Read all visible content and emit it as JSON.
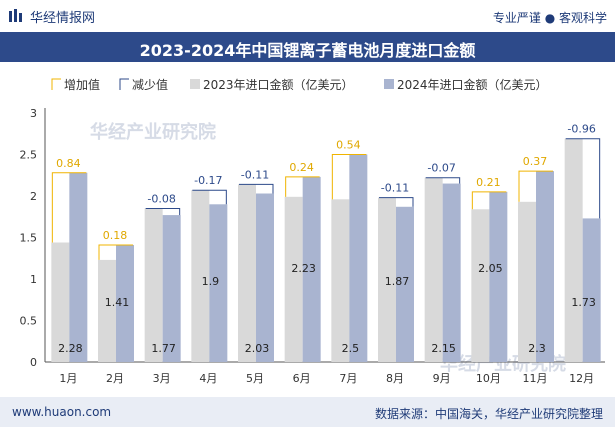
{
  "header": {
    "brand": "华经情报网",
    "slogan": "专业严谨 ● 客观科学"
  },
  "footer": {
    "url": "www.huaon.com",
    "source": "数据来源：中国海关，华经产业研究院整理"
  },
  "watermarks": [
    "华经产业研究院",
    "www.huaon.com"
  ],
  "colors": {
    "s2023": "#d9d9d9",
    "s2024": "#a9b4d0",
    "increase": "#f0b400",
    "decrease": "#2d4a8a",
    "title_bg": "#2d4a8a"
  },
  "chart_data": {
    "type": "bar",
    "title": "2023-2024年中国锂离子蓄电池月度进口金额",
    "categories": [
      "1月",
      "2月",
      "3月",
      "4月",
      "5月",
      "6月",
      "7月",
      "8月",
      "9月",
      "10月",
      "11月",
      "12月"
    ],
    "series": [
      {
        "name": "2023年进口金额（亿美元）",
        "values": [
          1.44,
          1.23,
          1.85,
          2.07,
          2.14,
          1.99,
          1.96,
          1.98,
          2.22,
          1.84,
          1.93,
          2.69
        ]
      },
      {
        "name": "2024年进口金额（亿美元）",
        "values": [
          2.28,
          1.41,
          1.77,
          1.9,
          2.03,
          2.23,
          2.5,
          1.87,
          2.15,
          2.05,
          2.3,
          1.73
        ]
      }
    ],
    "changes": [
      0.84,
      0.18,
      -0.08,
      -0.17,
      -0.11,
      0.24,
      0.54,
      -0.11,
      -0.07,
      0.21,
      0.37,
      -0.96
    ],
    "change_labels": [
      "0.84",
      "0.18",
      "-0.08",
      "-0.17",
      "-0.11",
      "0.24",
      "0.54",
      "-0.11",
      "-0.07",
      "0.21",
      "0.37",
      "-0.96"
    ],
    "value_labels_2024": [
      "2.28",
      "1.41",
      "1.77",
      "1.9",
      "2.03",
      "2.23",
      "2.5",
      "1.87",
      "2.15",
      "2.05",
      "2.3",
      "1.73"
    ],
    "legend": [
      "增加值",
      "减少值",
      "2023年进口金额（亿美元）",
      "2024年进口金额（亿美元）"
    ],
    "yticks": [
      "0",
      "0.5",
      "1",
      "1.5",
      "2",
      "2.5",
      "3"
    ],
    "ylim": [
      0,
      3
    ],
    "legend_position": "top-left",
    "grid": false
  }
}
